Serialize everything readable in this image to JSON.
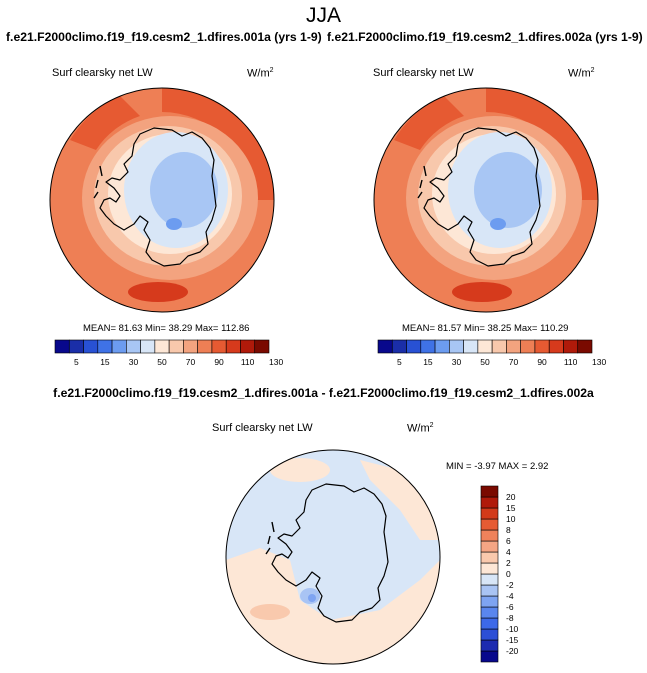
{
  "title": "JJA",
  "panels": {
    "left": {
      "run": "f.e21.F2000climo.f19_f19.cesm2_1.dfires.001a (yrs 1-9)",
      "variable": "Surf clearsky net LW",
      "units": "W/m",
      "units_exp": "2",
      "stats": "MEAN=  81.63  Min=  38.29  Max= 112.86"
    },
    "right": {
      "run": "f.e21.F2000climo.f19_f19.cesm2_1.dfires.002a (yrs 1-9)",
      "variable": "Surf clearsky net LW",
      "units": "W/m",
      "units_exp": "2",
      "stats": "MEAN=  81.57  Min=  38.25  Max= 110.29"
    },
    "diff": {
      "header": "f.e21.F2000climo.f19_f19.cesm2_1.dfires.001a - f.e21.F2000climo.f19_f19.cesm2_1.dfires.002a",
      "variable": "Surf clearsky net LW",
      "units": "W/m",
      "units_exp": "2",
      "stats": "MIN =  -3.97 MAX =   2.92"
    }
  },
  "chart_data": [
    {
      "type": "heatmap",
      "projection": "south-polar-stereographic",
      "title": "f.e21.F2000climo.f19_f19.cesm2_1.dfires.001a (yrs 1-9)",
      "variable": "Surf clearsky net LW",
      "units": "W/m2",
      "mean": 81.63,
      "min": 38.29,
      "max": 112.86,
      "colorbar": {
        "orientation": "horizontal",
        "levels": [
          5,
          15,
          30,
          50,
          70,
          90,
          110,
          130
        ],
        "colors": [
          "#08088c",
          "#1a2ea8",
          "#2851d4",
          "#3f72e6",
          "#6c9cf0",
          "#a8c6f4",
          "#d8e6f7",
          "#fde7d6",
          "#f8c8ac",
          "#f3a37f",
          "#ee7f55",
          "#e65a32",
          "#d63a1c",
          "#b01a0a",
          "#7a0a00"
        ]
      }
    },
    {
      "type": "heatmap",
      "projection": "south-polar-stereographic",
      "title": "f.e21.F2000climo.f19_f19.cesm2_1.dfires.002a (yrs 1-9)",
      "variable": "Surf clearsky net LW",
      "units": "W/m2",
      "mean": 81.57,
      "min": 38.25,
      "max": 110.29,
      "colorbar": {
        "orientation": "horizontal",
        "levels": [
          5,
          15,
          30,
          50,
          70,
          90,
          110,
          130
        ],
        "colors": [
          "#08088c",
          "#1a2ea8",
          "#2851d4",
          "#3f72e6",
          "#6c9cf0",
          "#a8c6f4",
          "#d8e6f7",
          "#fde7d6",
          "#f8c8ac",
          "#f3a37f",
          "#ee7f55",
          "#e65a32",
          "#d63a1c",
          "#b01a0a",
          "#7a0a00"
        ]
      }
    },
    {
      "type": "heatmap",
      "projection": "south-polar-stereographic",
      "title": "f.e21.F2000climo.f19_f19.cesm2_1.dfires.001a - f.e21.F2000climo.f19_f19.cesm2_1.dfires.002a",
      "variable": "Surf clearsky net LW",
      "units": "W/m2",
      "min": -3.97,
      "max": 2.92,
      "colorbar": {
        "orientation": "vertical",
        "levels": [
          -20,
          -15,
          -10,
          -8,
          -6,
          -4,
          -2,
          0,
          2,
          4,
          6,
          8,
          10,
          15,
          20
        ],
        "colors": [
          "#08088c",
          "#1c2ab0",
          "#2c4fd6",
          "#3d69e8",
          "#5a86ee",
          "#7ea4f2",
          "#a9c4f4",
          "#d8e6f7",
          "#fde7d6",
          "#f9c9ad",
          "#f4a584",
          "#ef825b",
          "#e65b33",
          "#d23a1a",
          "#b01a0a",
          "#7a0a00"
        ]
      }
    }
  ]
}
